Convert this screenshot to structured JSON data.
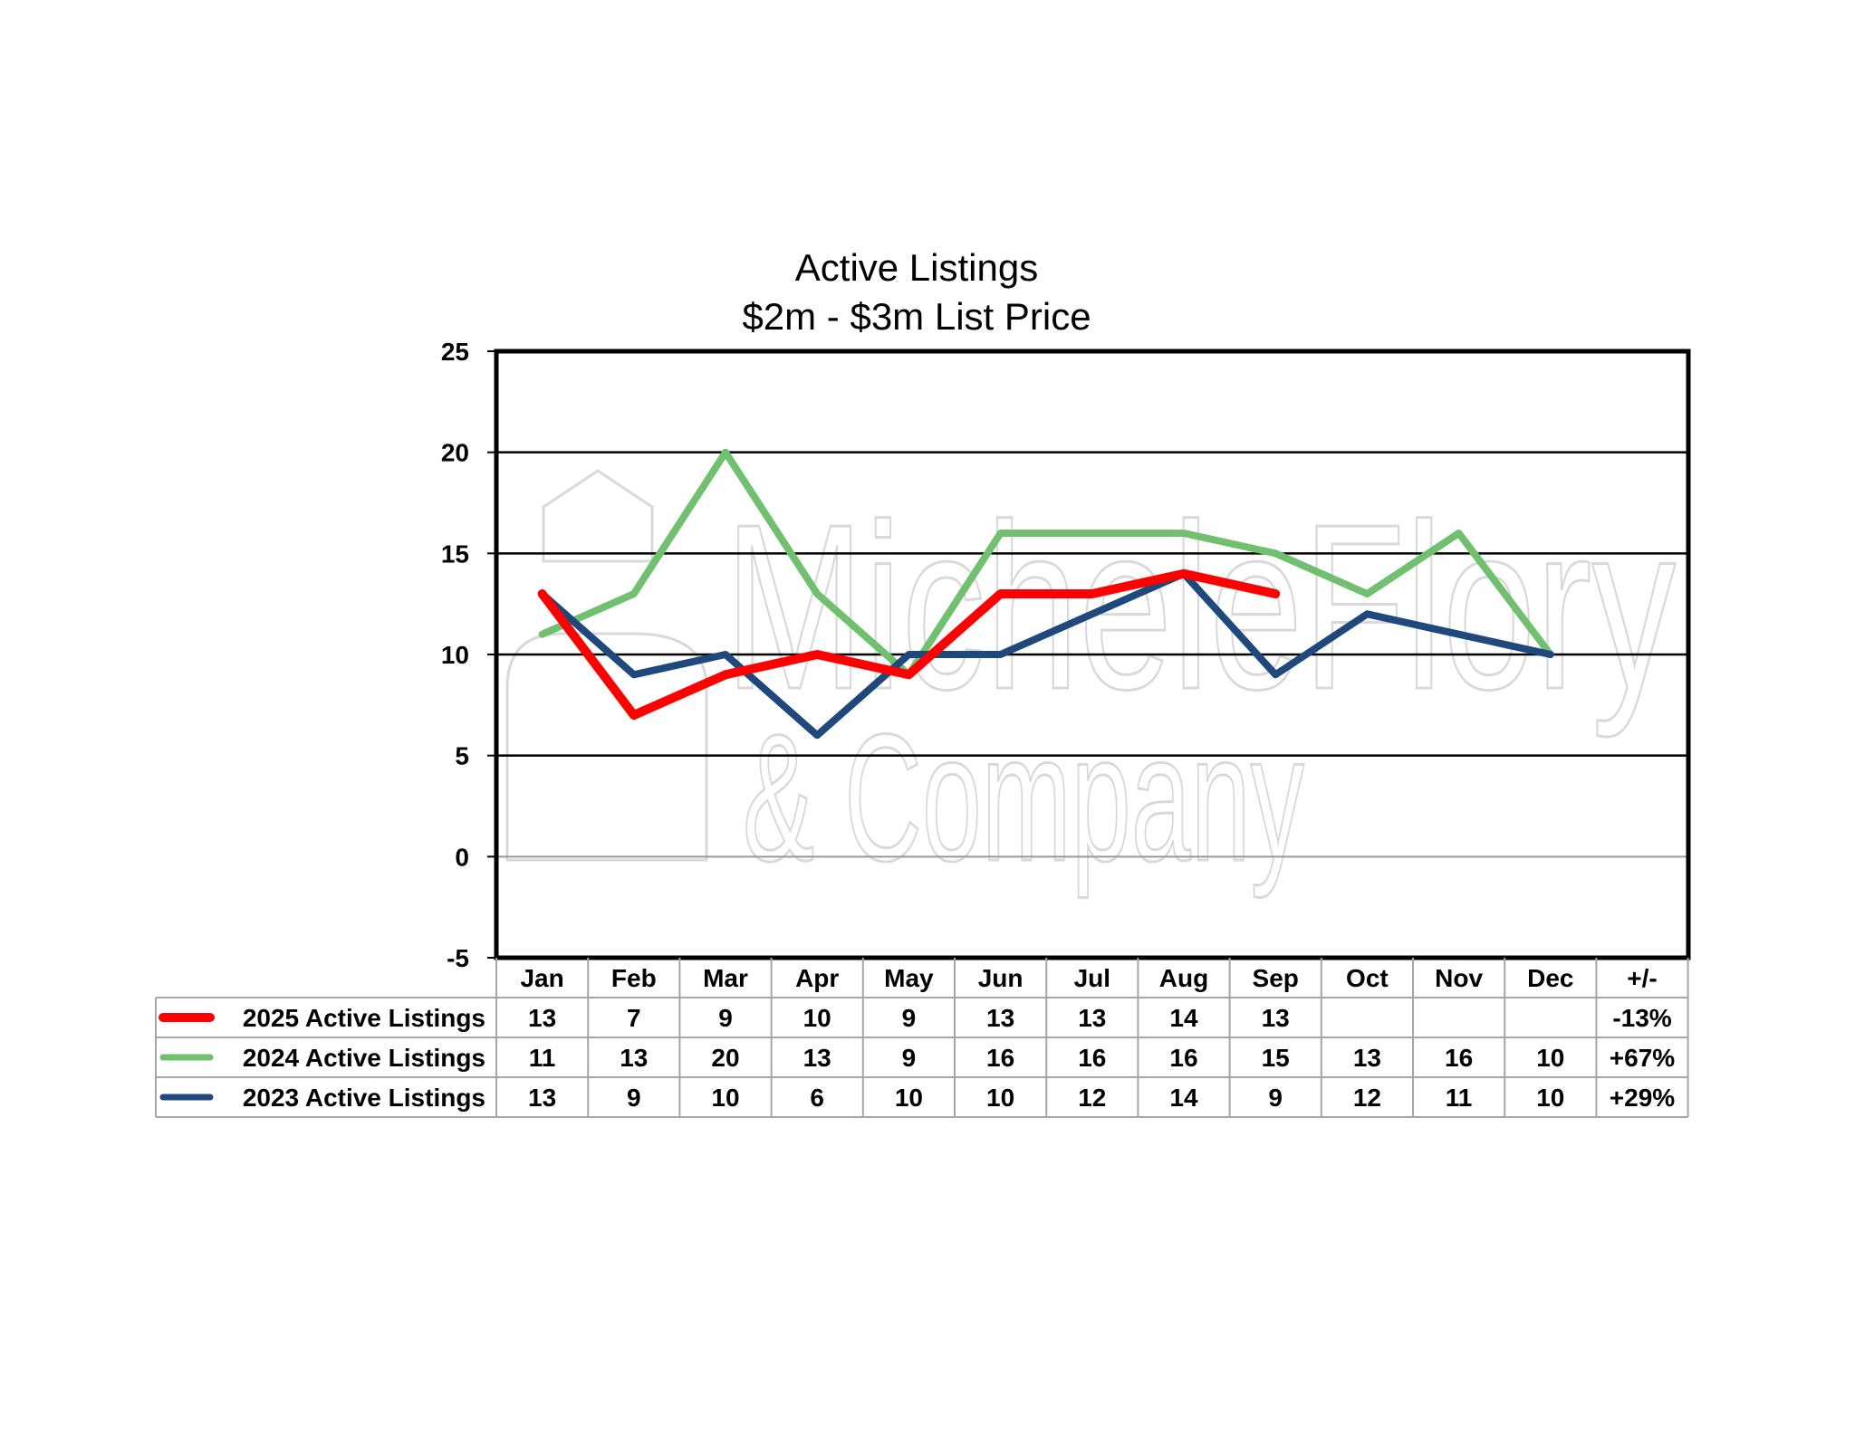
{
  "chart_data": {
    "type": "line",
    "title": "Active Listings",
    "subtitle": "$2m - $3m List Price",
    "categories": [
      "Jan",
      "Feb",
      "Mar",
      "Apr",
      "May",
      "Jun",
      "Jul",
      "Aug",
      "Sep",
      "Oct",
      "Nov",
      "Dec"
    ],
    "change_header": "+/-",
    "ylim": [
      -5,
      25
    ],
    "yticks": [
      "25",
      "20",
      "15",
      "10",
      "5",
      "0",
      "-5"
    ],
    "grid": true,
    "legend": "data table below chart",
    "series": [
      {
        "name": "2025 Active Listings",
        "color": "#ff0000",
        "values": [
          13,
          7,
          9,
          10,
          9,
          13,
          13,
          14,
          13,
          null,
          null,
          null
        ],
        "change": "-13%"
      },
      {
        "name": "2024 Active Listings",
        "color": "#70c070",
        "values": [
          11,
          13,
          20,
          13,
          9,
          16,
          16,
          16,
          15,
          13,
          16,
          10
        ],
        "change": "+67%"
      },
      {
        "name": "2023 Active Listings",
        "color": "#1f497d",
        "values": [
          13,
          9,
          10,
          6,
          10,
          10,
          12,
          14,
          9,
          12,
          11,
          10
        ],
        "change": "+29%"
      }
    ]
  },
  "watermark": {
    "line1": "MicheleFlory",
    "line2": "& Company"
  }
}
